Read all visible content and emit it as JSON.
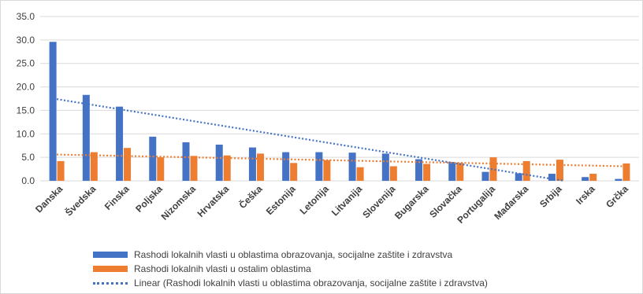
{
  "chart_data": {
    "type": "bar",
    "categories": [
      "Danska",
      "Švedska",
      "Finska",
      "Poljska",
      "Nizomska",
      "Hrvatska",
      "Češka",
      "Estonija",
      "Letonija",
      "Litvanija",
      "Slovenija",
      "Bugarska",
      "Slovačka",
      "Portugalija",
      "Mađarska",
      "Srbija",
      "Irska",
      "Grčka"
    ],
    "series": [
      {
        "name": "Rashodi lokalnih vlasti u oblastima obrazovanja, socijalne zaštite i zdravstva",
        "color": "#4472C4",
        "values": [
          29.6,
          18.3,
          15.8,
          9.4,
          8.2,
          7.7,
          7.1,
          6.1,
          6.1,
          6.0,
          5.8,
          4.6,
          4.0,
          1.9,
          1.6,
          1.5,
          0.8,
          0.4
        ]
      },
      {
        "name": "Rashodi lokalnih vlasti u ostalim oblastima",
        "color": "#ED7D31",
        "values": [
          4.2,
          6.1,
          7.0,
          5.0,
          5.3,
          5.4,
          5.8,
          3.8,
          4.4,
          2.9,
          3.1,
          3.6,
          3.8,
          5.0,
          4.2,
          4.5,
          1.5,
          3.7
        ]
      }
    ],
    "trendline": {
      "name": "Linear (Rashodi lokalnih vlasti u oblastima obrazovanja, socijalne zaštite i zdravstva)",
      "color": "#4472C4",
      "style": "dotted",
      "start": 17.4,
      "end": -2.0
    },
    "trendline_secondary": {
      "color": "#ED7D31",
      "style": "dotted",
      "start": 5.6,
      "end": 3.1
    },
    "y_ticks": [
      "0.0",
      "5.0",
      "10.0",
      "15.0",
      "20.0",
      "25.0",
      "30.0",
      "35.0"
    ],
    "ylim": [
      0,
      35
    ],
    "grid": true,
    "legend_placement": "bottom",
    "title": "",
    "xlabel": "",
    "ylabel": ""
  }
}
